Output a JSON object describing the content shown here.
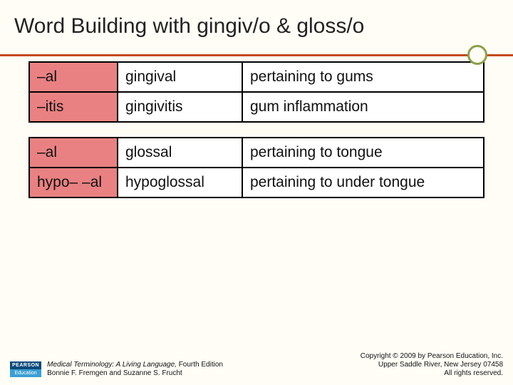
{
  "title": "Word Building with gingiv/o & gloss/o",
  "table1": {
    "rows": [
      {
        "suffix": "–al",
        "word": "gingival",
        "def": "pertaining to gums"
      },
      {
        "suffix": "–itis",
        "word": "gingivitis",
        "def": "gum inflammation"
      }
    ]
  },
  "table2": {
    "rows": [
      {
        "suffix": "–al",
        "word": "glossal",
        "def": "pertaining to tongue"
      },
      {
        "suffix": "hypo– –al",
        "word": "hypoglossal",
        "def": "pertaining to under tongue"
      }
    ]
  },
  "footer": {
    "logo_top": "PEARSON",
    "logo_bottom": "Education",
    "book_title": "Medical Terminology: A Living Language, ",
    "book_edition": "Fourth Edition",
    "authors": "Bonnie F. Fremgen and Suzanne S. Frucht",
    "copyright1": "Copyright © 2009 by Pearson Education, Inc.",
    "copyright2": "Upper Saddle River, New Jersey 07458",
    "copyright3": "All rights reserved."
  },
  "colors": {
    "suffix_bg": "#e98182",
    "underline": "#c24a1a",
    "circle": "#8aa04a",
    "slide_bg": "#fffdf5"
  }
}
